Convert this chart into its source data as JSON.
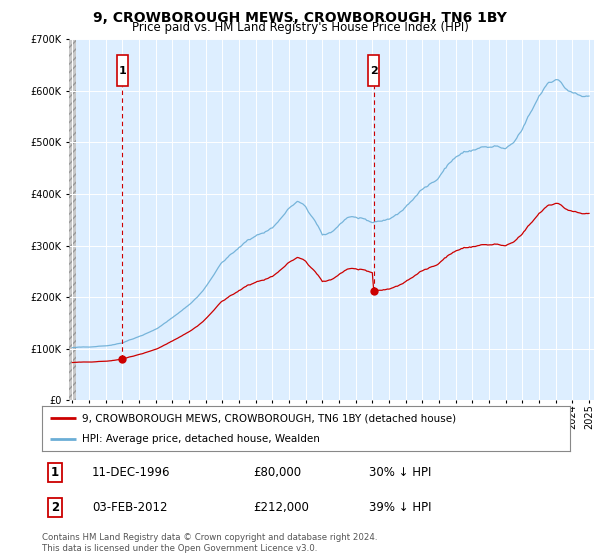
{
  "title": "9, CROWBOROUGH MEWS, CROWBOROUGH, TN6 1BY",
  "subtitle": "Price paid vs. HM Land Registry's House Price Index (HPI)",
  "legend_line1": "9, CROWBOROUGH MEWS, CROWBOROUGH, TN6 1BY (detached house)",
  "legend_line2": "HPI: Average price, detached house, Wealden",
  "annotation1_date": "11-DEC-1996",
  "annotation1_price": "£80,000",
  "annotation1_hpi": "30% ↓ HPI",
  "annotation2_date": "03-FEB-2012",
  "annotation2_price": "£212,000",
  "annotation2_hpi": "39% ↓ HPI",
  "footer": "Contains HM Land Registry data © Crown copyright and database right 2024.\nThis data is licensed under the Open Government Licence v3.0.",
  "sale1_year": 1997.0,
  "sale1_value": 80000,
  "sale2_year": 2012.08,
  "sale2_value": 212000,
  "ylim_max": 700000,
  "hpi_color": "#6baed6",
  "price_color": "#cc0000",
  "plot_bg": "#ddeeff",
  "annotation_box_color": "#cc0000"
}
